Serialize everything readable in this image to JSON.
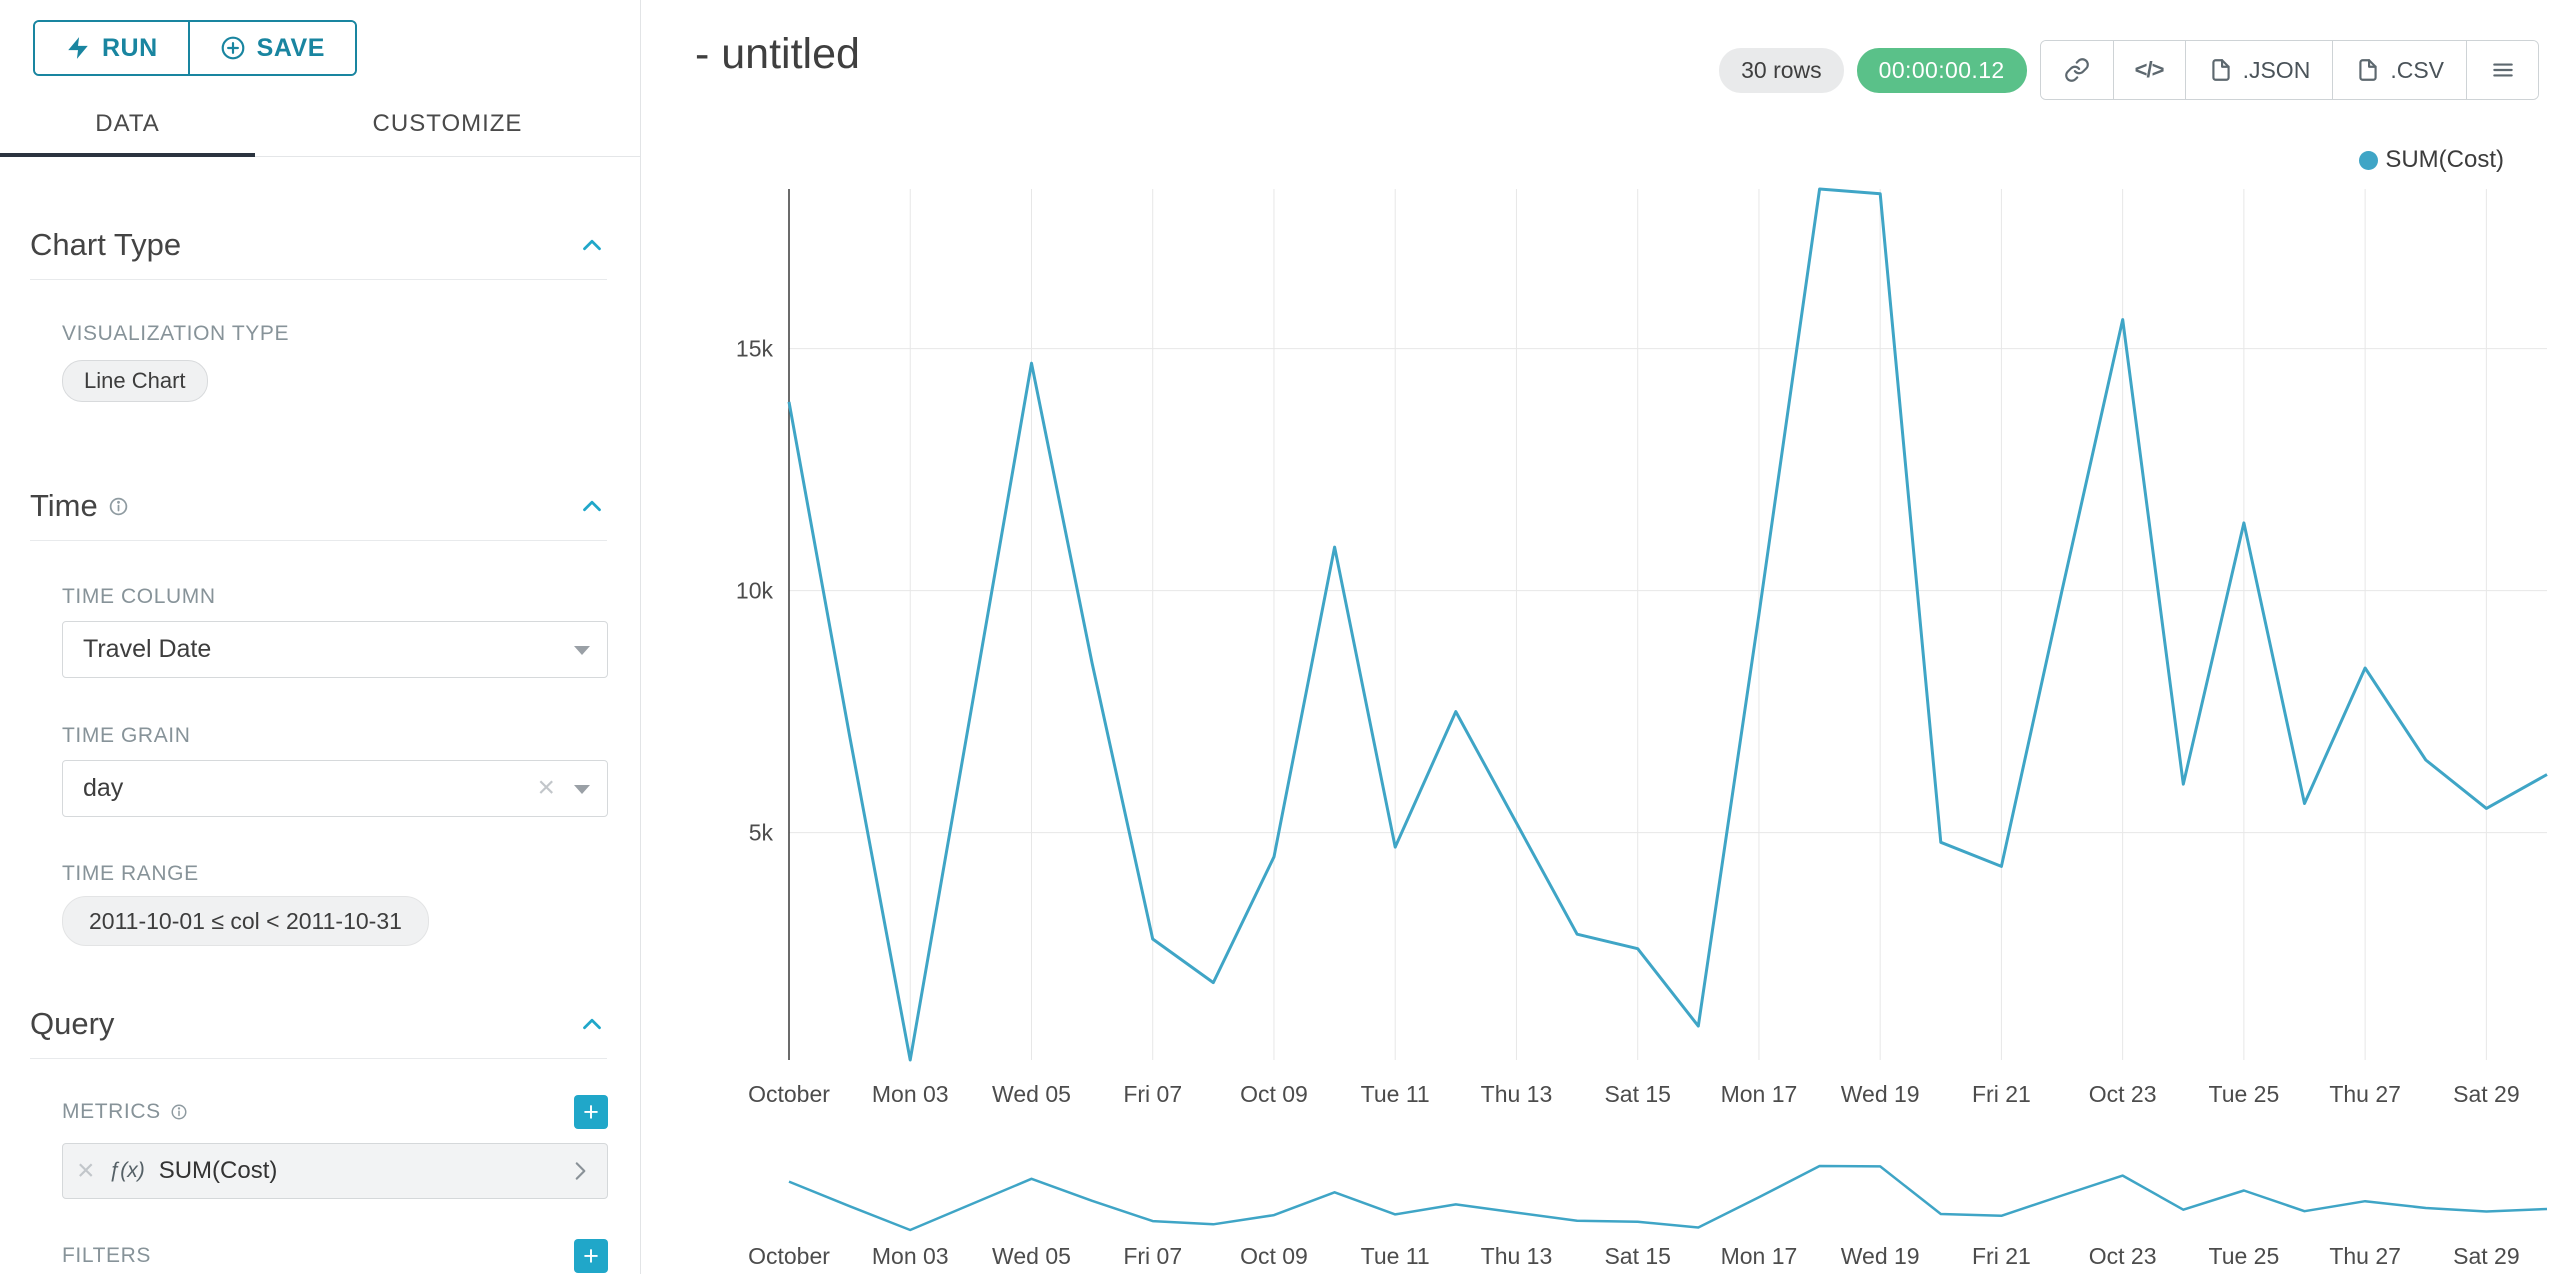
{
  "colors": {
    "accent_teal": "#20a7c9",
    "button_blue": "#1985a0",
    "success_green": "#5ac189",
    "line": "#3fa5c6",
    "tab_underline": "#2b333f",
    "label_gray": "#879399"
  },
  "icons": {
    "close": "×",
    "plus": "+",
    "code": "</>"
  },
  "toolbar": {
    "run_label": "RUN",
    "save_label": "SAVE"
  },
  "tabs": [
    {
      "label": "DATA"
    },
    {
      "label": "CUSTOMIZE"
    }
  ],
  "panel": {
    "chart_type": {
      "title": "Chart Type",
      "viz_type_label": "VISUALIZATION TYPE",
      "viz_type_value": "Line Chart"
    },
    "time": {
      "title": "Time",
      "time_column_label": "TIME COLUMN",
      "time_column_value": "Travel Date",
      "time_grain_label": "TIME GRAIN",
      "time_grain_value": "day",
      "time_range_label": "TIME RANGE",
      "time_range_value": "2011-10-01 ≤ col < 2011-10-31"
    },
    "query": {
      "title": "Query",
      "metrics_label": "METRICS",
      "metric_fx": "ƒ(x)",
      "metric_value": "SUM(Cost)",
      "filters_label": "FILTERS"
    }
  },
  "header": {
    "title": "- untitled",
    "rows_badge": "30 rows",
    "timer": "00:00:00.12",
    "json_label": ".JSON",
    "csv_label": ".CSV"
  },
  "chart_data": {
    "type": "line",
    "title": "",
    "xlabel": "",
    "ylabel": "",
    "grid": true,
    "legend_position": "top-right",
    "ylim": [
      300,
      18300
    ],
    "x": [
      "2011-10-01",
      "2011-10-02",
      "2011-10-03",
      "2011-10-04",
      "2011-10-05",
      "2011-10-06",
      "2011-10-07",
      "2011-10-08",
      "2011-10-09",
      "2011-10-10",
      "2011-10-11",
      "2011-10-12",
      "2011-10-13",
      "2011-10-14",
      "2011-10-15",
      "2011-10-16",
      "2011-10-17",
      "2011-10-18",
      "2011-10-19",
      "2011-10-20",
      "2011-10-21",
      "2011-10-22",
      "2011-10-23",
      "2011-10-24",
      "2011-10-25",
      "2011-10-26",
      "2011-10-27",
      "2011-10-28",
      "2011-10-29",
      "2011-10-30"
    ],
    "series": [
      {
        "name": "SUM(Cost)",
        "color": "#3fa5c6",
        "values": [
          13900,
          7000,
          300,
          7500,
          14700,
          8500,
          2800,
          1900,
          4500,
          10900,
          4700,
          7500,
          5200,
          2900,
          2600,
          1000,
          9500,
          18300,
          18200,
          4800,
          4300,
          10000,
          15600,
          6000,
          11400,
          5600,
          8400,
          6500,
          5500,
          6200
        ]
      }
    ],
    "y_ticks": [
      {
        "value": 5000,
        "label": "5k"
      },
      {
        "value": 10000,
        "label": "10k"
      },
      {
        "value": 15000,
        "label": "15k"
      }
    ],
    "x_tick_labels": [
      {
        "index": 0,
        "label": "October"
      },
      {
        "index": 2,
        "label": "Mon 03"
      },
      {
        "index": 4,
        "label": "Wed 05"
      },
      {
        "index": 6,
        "label": "Fri 07"
      },
      {
        "index": 8,
        "label": "Oct 09"
      },
      {
        "index": 10,
        "label": "Tue 11"
      },
      {
        "index": 12,
        "label": "Thu 13"
      },
      {
        "index": 14,
        "label": "Sat 15"
      },
      {
        "index": 16,
        "label": "Mon 17"
      },
      {
        "index": 18,
        "label": "Wed 19"
      },
      {
        "index": 20,
        "label": "Fri 21"
      },
      {
        "index": 22,
        "label": "Oct 23"
      },
      {
        "index": 24,
        "label": "Tue 25"
      },
      {
        "index": 26,
        "label": "Thu 27"
      },
      {
        "index": 28,
        "label": "Sat 29"
      }
    ],
    "brush_minichart": true
  }
}
